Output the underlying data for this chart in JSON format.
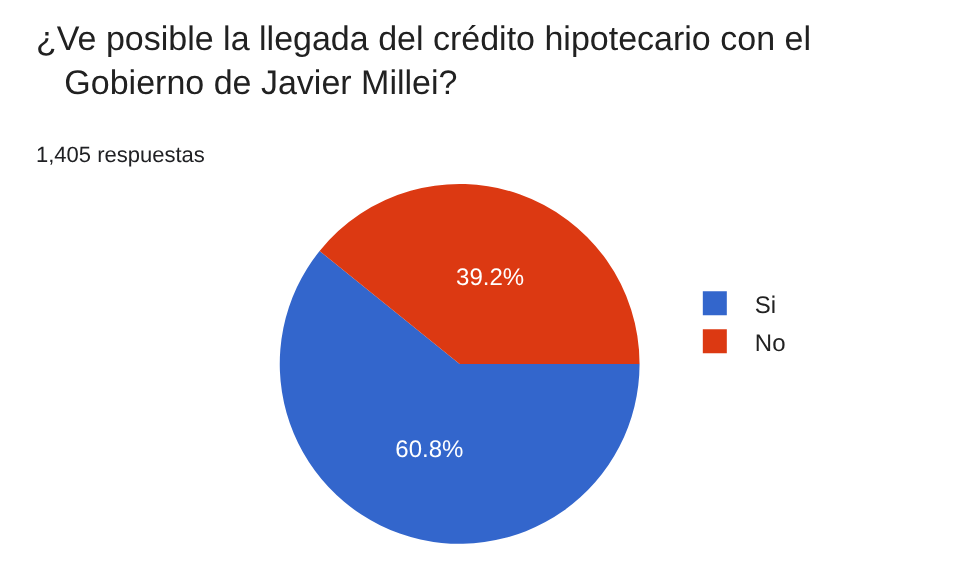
{
  "chart_data": {
    "type": "pie",
    "title": "¿Ve posible la llegada del crédito hipotecario con el Gobierno de Javier Millei?",
    "subtitle": "1,405 respuestas",
    "categories": [
      "Si",
      "No"
    ],
    "values": [
      60.8,
      39.2
    ],
    "colors": [
      "#3366cc",
      "#dc3912"
    ],
    "value_labels": [
      "60.8%",
      "39.2%"
    ],
    "legend": "right"
  }
}
